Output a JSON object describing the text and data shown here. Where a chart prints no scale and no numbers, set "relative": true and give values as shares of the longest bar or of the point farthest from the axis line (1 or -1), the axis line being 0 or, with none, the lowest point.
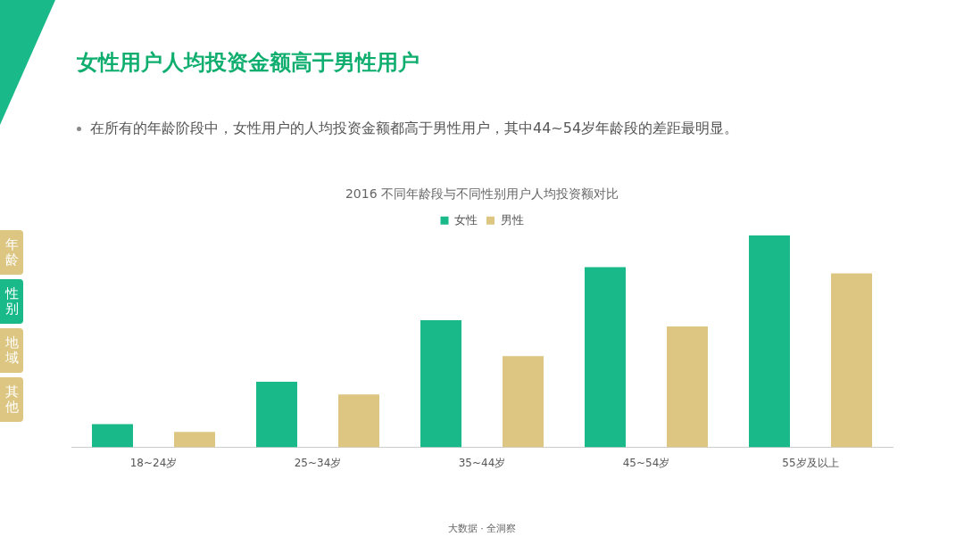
{
  "chart_data": {
    "type": "bar",
    "title": "女性用户人均投资金额高于男性用户",
    "subtitle": "2016 不同年龄段与不同性别用户人均投资额对比",
    "annotations": [
      "在所有的年龄阶段中，女性用户的人均投资金额都高于男性用户，其中44~54岁年龄段的差距最明显。",
      "年龄",
      "性别",
      "地域",
      "其他",
      "大数据 · 全洞察"
    ],
    "categories": [
      "18~24岁",
      "25~34岁",
      "35~44岁",
      "45~54岁",
      "55岁及以上"
    ],
    "relative": true,
    "grid": false,
    "legend": "top",
    "series": [
      {
        "name": "女性",
        "color": "#19b98a",
        "values": [
          0.11,
          0.31,
          0.6,
          0.85,
          1
        ]
      },
      {
        "name": "男性",
        "color": "#dcc682",
        "values": [
          0.073,
          0.25,
          0.43,
          0.57,
          0.82
        ]
      }
    ]
  }
}
